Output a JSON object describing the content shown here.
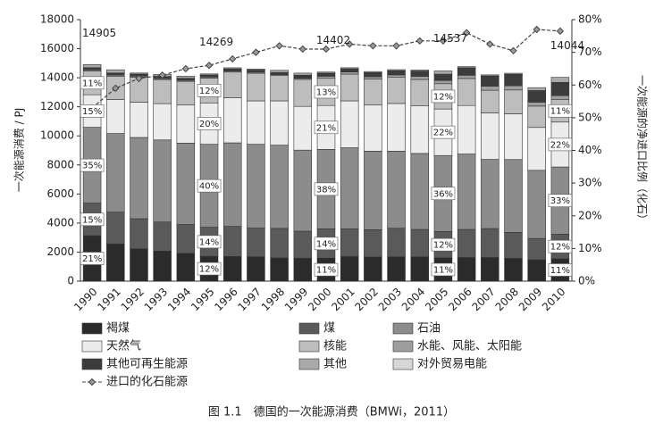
{
  "chart_data": {
    "type": "bar",
    "stacked": true,
    "caption": "图 1.1　德国的一次能源消费（BMWi，2011）",
    "ylabel": "一次能源消费 / PJ",
    "y2label": "一次能源的净进口比例（化石）",
    "categories": [
      "1990",
      "1991",
      "1992",
      "1993",
      "1994",
      "1995",
      "1996",
      "1997",
      "1998",
      "1999",
      "2000",
      "2001",
      "2002",
      "2003",
      "2004",
      "2005",
      "2006",
      "2007",
      "2008",
      "2009",
      "2010"
    ],
    "ylim": [
      0,
      18000
    ],
    "yticks": [
      0,
      2000,
      4000,
      6000,
      8000,
      10000,
      12000,
      14000,
      16000,
      18000
    ],
    "y2lim": [
      0,
      80
    ],
    "y2ticks": [
      {
        "value": 0,
        "label": "0%"
      },
      {
        "value": 10,
        "label": "10%"
      },
      {
        "value": 20,
        "label": "20%"
      },
      {
        "value": 30,
        "label": "30%"
      },
      {
        "value": 40,
        "label": "40%"
      },
      {
        "value": 50,
        "label": "50%"
      },
      {
        "value": 60,
        "label": "60%"
      },
      {
        "value": 70,
        "label": "70%"
      },
      {
        "value": 80,
        "label": "80%"
      }
    ],
    "series": [
      {
        "name": "褐煤",
        "color": "#2b2b2b",
        "values": [
          3130,
          2560,
          2220,
          2070,
          1910,
          1710,
          1700,
          1680,
          1600,
          1580,
          1580,
          1690,
          1660,
          1670,
          1670,
          1600,
          1630,
          1630,
          1570,
          1470,
          1540
        ]
      },
      {
        "name": "煤",
        "color": "#5a5a5a",
        "values": [
          2240,
          2190,
          2080,
          2000,
          1990,
          2000,
          2070,
          1970,
          2030,
          1860,
          2020,
          1910,
          1880,
          1970,
          1890,
          1820,
          1930,
          1990,
          1790,
          1470,
          1690
        ]
      },
      {
        "name": "石油",
        "color": "#8c8c8c",
        "values": [
          5220,
          5410,
          5590,
          5650,
          5600,
          5710,
          5750,
          5770,
          5730,
          5580,
          5470,
          5580,
          5410,
          5310,
          5230,
          5230,
          5190,
          4760,
          5010,
          4690,
          4630
        ]
      },
      {
        "name": "天然气",
        "color": "#ececec",
        "values": [
          2240,
          2340,
          2430,
          2500,
          2620,
          2850,
          3100,
          2990,
          3050,
          3010,
          3020,
          3230,
          3170,
          3280,
          3270,
          3200,
          3340,
          3200,
          3150,
          2950,
          3090
        ]
      },
      {
        "name": "核能",
        "color": "#bdbdbd",
        "values": [
          1640,
          1610,
          1720,
          1650,
          1630,
          1710,
          1770,
          1900,
          1740,
          1860,
          1870,
          1840,
          1800,
          1820,
          1820,
          1740,
          1860,
          1560,
          1640,
          1470,
          1540
        ]
      },
      {
        "name": "水能、风能、太阳能",
        "color": "#9e9e9e",
        "values": [
          75,
          73,
          72,
          72,
          71,
          71,
          74,
          73,
          73,
          72,
          144,
          147,
          144,
          146,
          220,
          220,
          220,
          280,
          290,
          270,
          280
        ]
      },
      {
        "name": "其他可再生能源",
        "color": "#3c3c3c",
        "values": [
          150,
          146,
          143,
          143,
          142,
          143,
          148,
          146,
          145,
          215,
          216,
          220,
          290,
          290,
          360,
          440,
          520,
          710,
          790,
          800,
          910
        ]
      },
      {
        "name": "其他",
        "color": "#a9a9a9",
        "values": [
          210,
          220,
          70,
          140,
          140,
          70,
          74,
          73,
          145,
          143,
          72,
          73,
          72,
          73,
          73,
          220,
          74,
          71,
          72,
          200,
          350
        ]
      },
      {
        "name": "对外贸易电能",
        "color": "#d6d6d6",
        "values": [
          0,
          0,
          0,
          0,
          0,
          0,
          0,
          0,
          0,
          0,
          0,
          0,
          0,
          0,
          0,
          0,
          0,
          0,
          0,
          0,
          0
        ]
      },
      {
        "name": "进口的化石能源",
        "color": "#444444",
        "axis": "y2",
        "values": [
          53,
          59,
          62,
          63,
          65,
          66,
          68,
          70,
          72,
          71,
          71,
          72.5,
          72,
          72,
          73.5,
          73.5,
          76,
          72.5,
          70.5,
          77,
          76.5
        ]
      }
    ],
    "share_labels": [
      {
        "category": "1990",
        "series": "褐煤",
        "text": "21%"
      },
      {
        "category": "1990",
        "series": "煤",
        "text": "15%"
      },
      {
        "category": "1990",
        "series": "石油",
        "text": "35%"
      },
      {
        "category": "1990",
        "series": "天然气",
        "text": "15%"
      },
      {
        "category": "1990",
        "series": "核能",
        "text": "11%"
      },
      {
        "category": "1995",
        "series": "褐煤",
        "text": "12%"
      },
      {
        "category": "1995",
        "series": "煤",
        "text": "14%"
      },
      {
        "category": "1995",
        "series": "石油",
        "text": "40%"
      },
      {
        "category": "1995",
        "series": "天然气",
        "text": "20%"
      },
      {
        "category": "1995",
        "series": "核能",
        "text": "12%"
      },
      {
        "category": "2000",
        "series": "褐煤",
        "text": "11%"
      },
      {
        "category": "2000",
        "series": "煤",
        "text": "14%"
      },
      {
        "category": "2000",
        "series": "石油",
        "text": "38%"
      },
      {
        "category": "2000",
        "series": "天然气",
        "text": "21%"
      },
      {
        "category": "2000",
        "series": "核能",
        "text": "13%"
      },
      {
        "category": "2005",
        "series": "褐煤",
        "text": "11%"
      },
      {
        "category": "2005",
        "series": "煤",
        "text": "12%"
      },
      {
        "category": "2005",
        "series": "石油",
        "text": "36%"
      },
      {
        "category": "2005",
        "series": "天然气",
        "text": "22%"
      },
      {
        "category": "2005",
        "series": "核能",
        "text": "12%"
      },
      {
        "category": "2010",
        "series": "褐煤",
        "text": "11%"
      },
      {
        "category": "2010",
        "series": "煤",
        "text": "12%"
      },
      {
        "category": "2010",
        "series": "石油",
        "text": "33%"
      },
      {
        "category": "2010",
        "series": "天然气",
        "text": "22%"
      },
      {
        "category": "2010",
        "series": "核能",
        "text": "11%"
      }
    ],
    "total_labels": [
      {
        "category": "1990",
        "value": 14905
      },
      {
        "category": "1995",
        "value": 14269
      },
      {
        "category": "2000",
        "value": 14402
      },
      {
        "category": "2005",
        "value": 14537
      },
      {
        "category": "2010",
        "value": 14044
      }
    ]
  }
}
